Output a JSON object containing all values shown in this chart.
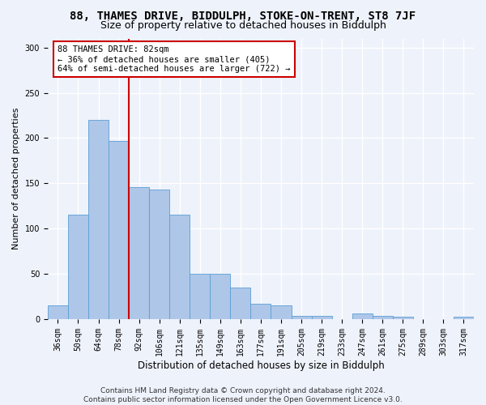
{
  "title_line1": "88, THAMES DRIVE, BIDDULPH, STOKE-ON-TRENT, ST8 7JF",
  "title_line2": "Size of property relative to detached houses in Biddulph",
  "xlabel": "Distribution of detached houses by size in Biddulph",
  "ylabel": "Number of detached properties",
  "categories": [
    "36sqm",
    "50sqm",
    "64sqm",
    "78sqm",
    "92sqm",
    "106sqm",
    "121sqm",
    "135sqm",
    "149sqm",
    "163sqm",
    "177sqm",
    "191sqm",
    "205sqm",
    "219sqm",
    "233sqm",
    "247sqm",
    "261sqm",
    "275sqm",
    "289sqm",
    "303sqm",
    "317sqm"
  ],
  "values": [
    15,
    115,
    220,
    197,
    146,
    143,
    115,
    50,
    50,
    35,
    17,
    15,
    4,
    4,
    0,
    6,
    4,
    3,
    0,
    0,
    3
  ],
  "bar_color": "#aec6e8",
  "bar_edge_color": "#5a9fd4",
  "vline_x": 3.5,
  "vline_color": "#cc0000",
  "annotation_text": "88 THAMES DRIVE: 82sqm\n← 36% of detached houses are smaller (405)\n64% of semi-detached houses are larger (722) →",
  "annotation_box_color": "#ffffff",
  "annotation_box_edge": "#cc0000",
  "background_color": "#eef2fb",
  "grid_color": "#ffffff",
  "footnote": "Contains HM Land Registry data © Crown copyright and database right 2024.\nContains public sector information licensed under the Open Government Licence v3.0.",
  "ylim": [
    0,
    310
  ],
  "title_fontsize": 10,
  "subtitle_fontsize": 9,
  "xlabel_fontsize": 8.5,
  "ylabel_fontsize": 8,
  "tick_fontsize": 7,
  "footnote_fontsize": 6.5,
  "ann_fontsize": 7.5
}
